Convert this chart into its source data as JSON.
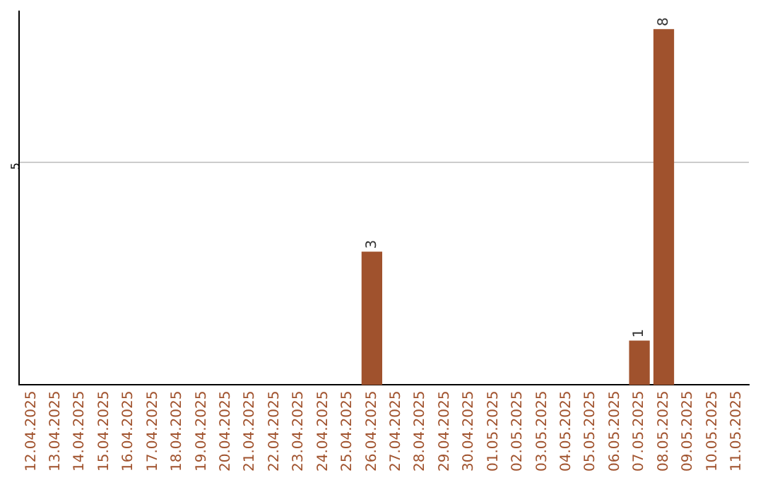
{
  "chart_data": {
    "type": "bar",
    "categories": [
      "12.04.2025",
      "13.04.2025",
      "14.04.2025",
      "15.04.2025",
      "16.04.2025",
      "17.04.2025",
      "18.04.2025",
      "19.04.2025",
      "20.04.2025",
      "21.04.2025",
      "22.04.2025",
      "23.04.2025",
      "24.04.2025",
      "25.04.2025",
      "26.04.2025",
      "27.04.2025",
      "28.04.2025",
      "29.04.2025",
      "30.04.2025",
      "01.05.2025",
      "02.05.2025",
      "03.05.2025",
      "04.05.2025",
      "05.05.2025",
      "06.05.2025",
      "07.05.2025",
      "08.05.2025",
      "09.05.2025",
      "10.05.2025",
      "11.05.2025"
    ],
    "values": [
      null,
      null,
      null,
      null,
      null,
      null,
      null,
      null,
      null,
      null,
      null,
      null,
      null,
      null,
      3,
      null,
      null,
      null,
      null,
      null,
      null,
      null,
      null,
      null,
      null,
      1,
      8,
      null,
      null,
      null
    ],
    "color": "#a0522d",
    "ylim": [
      0,
      8.4
    ],
    "yticks": [
      5
    ],
    "grid": "y",
    "data_labels": true,
    "legend": false
  }
}
